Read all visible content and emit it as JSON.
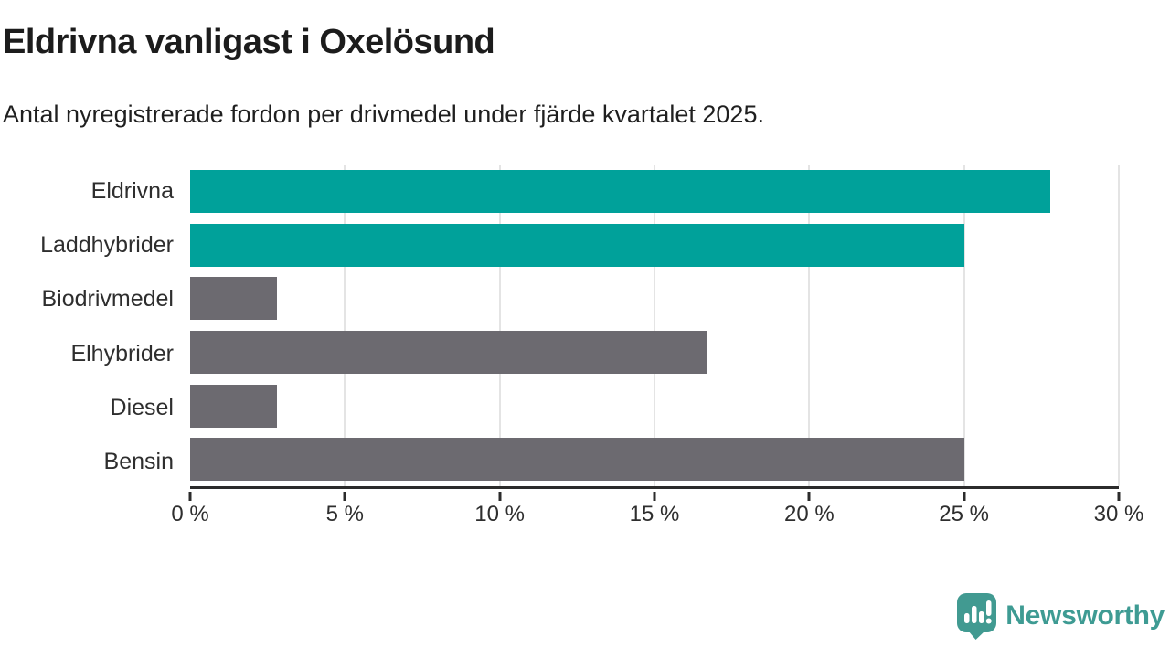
{
  "header": {
    "title": "Eldrivna vanligast i Oxelösund",
    "subtitle": "Antal nyregistrerade fordon per drivmedel under fjärde kvartalet 2025."
  },
  "chart_data": {
    "type": "bar",
    "orientation": "horizontal",
    "title": "Eldrivna vanligast i Oxelösund",
    "subtitle": "Antal nyregistrerade fordon per drivmedel under fjärde kvartalet 2025.",
    "categories": [
      "Eldrivna",
      "Laddhybrider",
      "Biodrivmedel",
      "Elhybrider",
      "Diesel",
      "Bensin"
    ],
    "values": [
      27.8,
      25,
      2.8,
      16.7,
      2.8,
      25
    ],
    "unit": "%",
    "xlabel": "",
    "ylabel": "",
    "xlim": [
      0,
      30
    ],
    "x_tick_values": [
      0,
      5,
      10,
      15,
      20,
      25,
      30
    ],
    "x_tick_labels": [
      "0 %",
      "5 %",
      "10 %",
      "15 %",
      "20 %",
      "25 %",
      "30 %"
    ],
    "grid": true,
    "legend": false,
    "bar_colors": [
      "#00a19a",
      "#00a19a",
      "#6c6a70",
      "#6c6a70",
      "#6c6a70",
      "#6c6a70"
    ],
    "highlight_color": "#00a19a",
    "default_color": "#6c6a70",
    "gridline_color": "#e4e4e4",
    "axis_color": "#2b2b2b"
  },
  "branding": {
    "logo_text": "Newsworthy",
    "logo_color": "#3e9b93"
  }
}
